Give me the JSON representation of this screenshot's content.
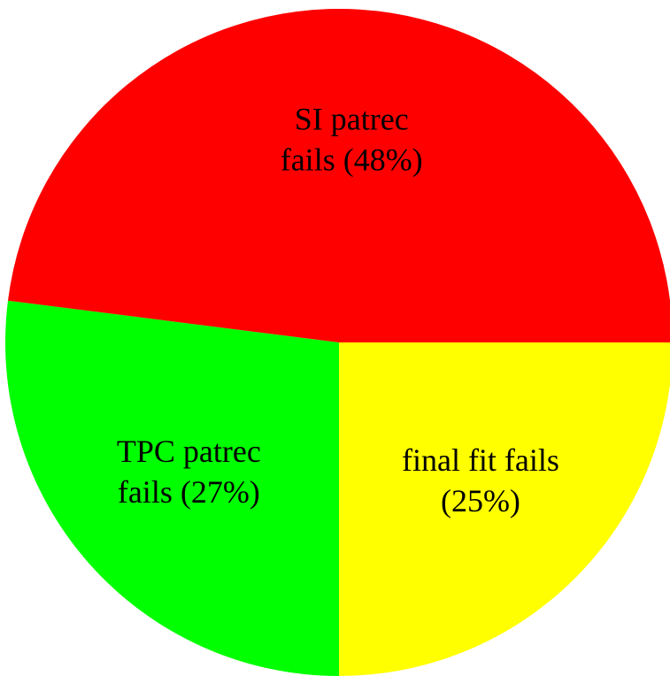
{
  "chart_data": {
    "type": "pie",
    "labels": [
      [
        "final fit fails",
        "(25%)"
      ],
      [
        "TPC patrec",
        "fails (27%)"
      ],
      [
        "SI patrec",
        "fails (48%)"
      ]
    ],
    "values": [
      25,
      27,
      48
    ],
    "colors": [
      "#ffff00",
      "#00ff00",
      "#ff0000"
    ]
  }
}
